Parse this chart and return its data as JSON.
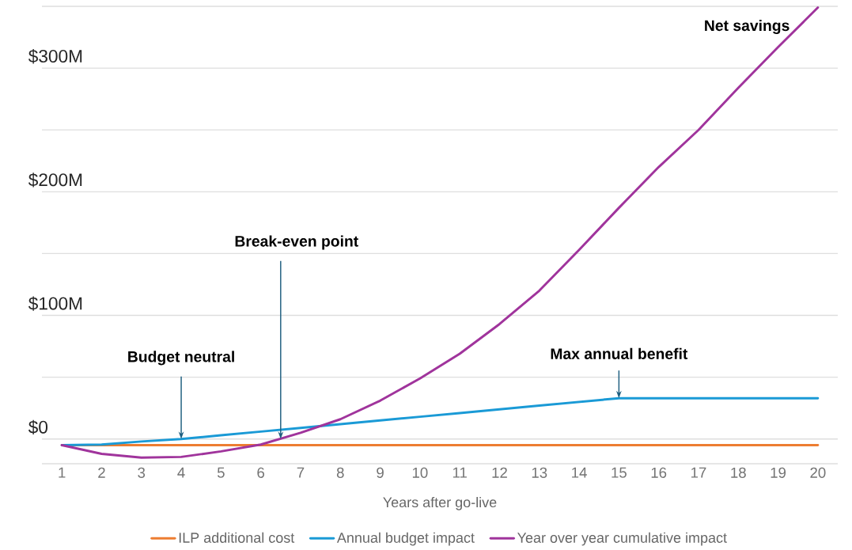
{
  "chart_data": {
    "type": "line",
    "xlabel": "Years after go-live",
    "x": [
      1,
      2,
      3,
      4,
      5,
      6,
      7,
      8,
      9,
      10,
      11,
      12,
      13,
      14,
      15,
      16,
      17,
      18,
      19,
      20
    ],
    "series": [
      {
        "name": "ILP additional cost",
        "color": "#ed7d31",
        "values": [
          -5,
          -5,
          -5,
          -5,
          -5,
          -5,
          -5,
          -5,
          -5,
          -5,
          -5,
          -5,
          -5,
          -5,
          -5,
          -5,
          -5,
          -5,
          -5,
          -5
        ]
      },
      {
        "name": "Annual budget impact",
        "color": "#1a9ad6",
        "values": [
          -5,
          -4.5,
          -2,
          0,
          3,
          6,
          9,
          12,
          15,
          18,
          21,
          24,
          27,
          30,
          33,
          33,
          33,
          33,
          33,
          33
        ]
      },
      {
        "name": "Year over year cumulative impact",
        "color": "#a0349c",
        "values": [
          -5,
          -12,
          -15,
          -14.5,
          -10,
          -4.5,
          5,
          16,
          31,
          49,
          69,
          93,
          120,
          153,
          187,
          220,
          250,
          284,
          317,
          349
        ]
      }
    ],
    "xlim": [
      0.5,
      20.5
    ],
    "ylim": [
      -20,
      350
    ],
    "xticks": [
      1,
      2,
      3,
      4,
      5,
      6,
      7,
      8,
      9,
      10,
      11,
      12,
      13,
      14,
      15,
      16,
      17,
      18,
      19,
      20
    ],
    "yticks": [
      {
        "value": 0,
        "label": "$0"
      },
      {
        "value": 50,
        "label": null
      },
      {
        "value": 100,
        "label": "$100M"
      },
      {
        "value": 150,
        "label": null
      },
      {
        "value": 200,
        "label": "$200M"
      },
      {
        "value": 250,
        "label": null
      },
      {
        "value": 300,
        "label": "$300M"
      },
      {
        "value": 350,
        "label": null
      }
    ],
    "grid": "y",
    "legend": "bottom",
    "line_style": "solid",
    "annotations": [
      {
        "text": "Budget neutral",
        "x": 4,
        "y": 0
      },
      {
        "text": "Break-even point",
        "x": 6.5,
        "y": 0
      },
      {
        "text": "Max annual benefit",
        "x": 15,
        "y": 33
      },
      "Net savings"
    ]
  }
}
